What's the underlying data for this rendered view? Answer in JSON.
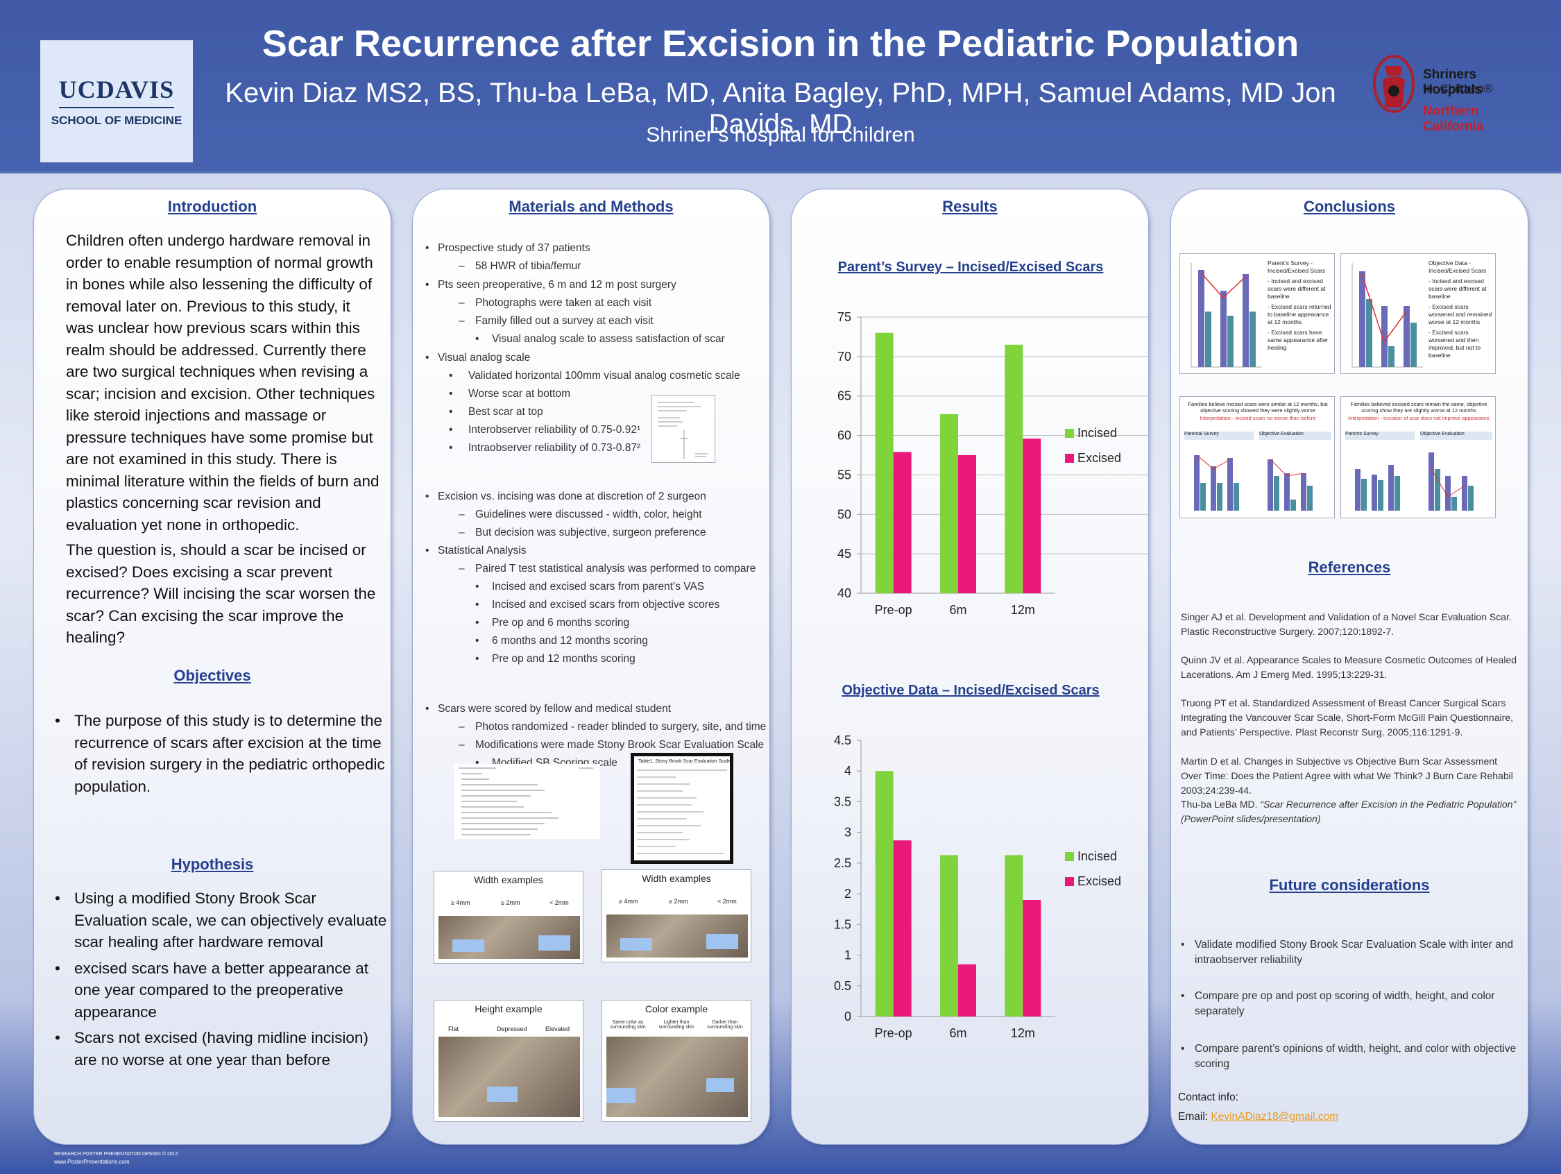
{
  "header": {
    "title": "Scar Recurrence after Excision in the Pediatric Population",
    "authors": "Kevin Diaz MS2, BS, Thu-ba LeBa, MD, Anita Bagley, PhD, MPH, Samuel Adams, MD Jon Davids, MD",
    "institution": "Shriner’s hospital for children",
    "logo_left": {
      "line1": "UCDAVIS",
      "line2": "SCHOOL OF MEDICINE"
    },
    "logo_right": {
      "line1": "Shriners Hospitals",
      "line2": "for Children®",
      "line3": "Northern California"
    }
  },
  "intro": {
    "heading": "Introduction",
    "para1": "Children often undergo hardware removal  in order to enable resumption of normal growth in bones while also lessening the difficulty of removal later on. Previous to this study, it was unclear how previous scars within this realm should be addressed. Currently there are two surgical techniques when revising a scar; incision and excision. Other techniques like steroid injections and massage or pressure techniques have some promise but are not examined in this study. There is minimal literature within the fields of burn and plastics concerning scar revision and evaluation yet none in orthopedic.",
    "para2": "The question is, should a scar be incised or excised? Does excising a scar prevent recurrence? Will incising the scar worsen the scar? Can excising the scar improve the healing?"
  },
  "objectives": {
    "heading": "Objectives",
    "items": [
      "The purpose of this study is to determine the recurrence of scars after excision at the time of revision surgery in the pediatric orthopedic population."
    ]
  },
  "hypothesis": {
    "heading": "Hypothesis",
    "items": [
      "Using a modified Stony Brook Scar Evaluation scale, we can objectively evaluate scar healing after hardware removal",
      "excised scars have a better appearance at one year compared to the preoperative appearance",
      "Scars not excised (having midline incision) are no worse at one year than before"
    ]
  },
  "methods": {
    "heading": "Materials and Methods",
    "lines": [
      {
        "level": 1,
        "marker": "•",
        "text": "Prospective study of 37 patients"
      },
      {
        "level": 2,
        "marker": "–",
        "text": "58 HWR of tibia/femur"
      },
      {
        "level": 1,
        "marker": "•",
        "text": "Pts seen preoperative, 6 m and 12 m post surgery"
      },
      {
        "level": 2,
        "marker": "–",
        "text": "Photographs were taken at each visit"
      },
      {
        "level": 2,
        "marker": "–",
        "text": "Family filled out a survey at each visit"
      },
      {
        "level": 3,
        "marker": "•",
        "text": "Visual analog scale to assess satisfaction of scar"
      },
      {
        "level": 1,
        "marker": "•",
        "text": "Visual analog scale"
      },
      {
        "level": 3,
        "marker": "•",
        "text": "Validated horizontal 100mm visual analog cosmetic scale"
      },
      {
        "level": 3,
        "marker": "•",
        "text": "Worse scar at bottom"
      },
      {
        "level": 3,
        "marker": "•",
        "text": "Best scar at top"
      },
      {
        "level": 3,
        "marker": "•",
        "text": "Interobserver reliability of 0.75-0.92¹"
      },
      {
        "level": 3,
        "marker": "•",
        "text": "Intraobserver reliability of 0.73-0.87²"
      },
      {
        "level": 1,
        "marker": "•",
        "text": "Excision vs. incising was done at discretion of 2 surgeon"
      },
      {
        "level": 2,
        "marker": "–",
        "text": "Guidelines were discussed - width, color, height"
      },
      {
        "level": 2,
        "marker": "–",
        "text": "But decision was subjective, surgeon preference"
      },
      {
        "level": 1,
        "marker": "•",
        "text": "Statistical Analysis"
      },
      {
        "level": 2,
        "marker": "–",
        "text": "Paired T test statistical analysis was performed to compare"
      },
      {
        "level": 3,
        "marker": "•",
        "text": "Incised and excised scars from parent’s VAS"
      },
      {
        "level": 3,
        "marker": "•",
        "text": "Incised and excised scars from objective scores"
      },
      {
        "level": 3,
        "marker": "•",
        "text": "Pre op and 6 months scoring"
      },
      {
        "level": 3,
        "marker": "•",
        "text": "6 months and 12 months scoring"
      },
      {
        "level": 3,
        "marker": "•",
        "text": "Pre op and 12 months scoring"
      },
      {
        "level": 1,
        "marker": "•",
        "text": "Scars were scored by fellow and medical student"
      },
      {
        "level": 2,
        "marker": "–",
        "text": "Photos randomized - reader blinded to surgery, site, and time"
      },
      {
        "level": 2,
        "marker": "–",
        "text": "Modifications were made Stony Brook Scar Evaluation Scale"
      },
      {
        "level": 3,
        "marker": "•",
        "text": "Modified SB Scoring scale"
      }
    ],
    "figures": {
      "width1": "Width examples",
      "width2": "Width examples",
      "height": "Height example",
      "color": "Color example",
      "width_labels": [
        "≥ 4mm",
        "≥ 2mm",
        "< 2mm"
      ],
      "height_labels": [
        "Flat",
        "Depressed",
        "Elevated"
      ],
      "color_labels": [
        "Same color as surrounding skin",
        "Lighter than surrounding skin",
        "Darker than surrounding skin"
      ],
      "table_title": "Table1. Stony Brook Scar Evaluation Scale"
    }
  },
  "results": {
    "heading": "Results"
  },
  "chart_data": [
    {
      "type": "bar",
      "title": "Parent’s Survey – Incised/Excised Scars",
      "categories": [
        "Pre-op",
        "6m",
        "12m"
      ],
      "series": [
        {
          "name": "Incised",
          "values": [
            73.0,
            62.7,
            71.5
          ],
          "color": "#7ed43a"
        },
        {
          "name": "Excised",
          "values": [
            57.9,
            57.5,
            59.6
          ],
          "color": "#e8197a"
        }
      ],
      "ylim": [
        40,
        75
      ],
      "yticks": [
        "75",
        "70",
        "65",
        "60",
        "55",
        "50",
        "45",
        "40"
      ],
      "grid": true,
      "legend": "right"
    },
    {
      "type": "bar",
      "title": "Objective Data – Incised/Excised Scars",
      "categories": [
        "Pre-op",
        "6m",
        "12m"
      ],
      "series": [
        {
          "name": "Incised",
          "values": [
            4.0,
            2.63,
            2.63
          ],
          "color": "#7ed43a"
        },
        {
          "name": "Excised",
          "values": [
            2.87,
            0.85,
            1.9
          ],
          "color": "#e8197a"
        }
      ],
      "ylim": [
        0,
        4.5
      ],
      "yticks": [
        "4.5",
        "4",
        "3.5",
        "3",
        "2.5",
        "2",
        "1.5",
        "1",
        "0.5",
        "0"
      ],
      "grid": false,
      "legend": "right"
    }
  ],
  "conclusions": {
    "heading": "Conclusions",
    "thumb1": [
      "Parent’s Survey - Incised/Excised Scars",
      "- Incised and excised scars were different at baseline",
      "- Excised scars returned to baseline appearance at 12 months",
      "- Excised scars have same appearance after healing"
    ],
    "thumb2": [
      "Objective Data - Incised/Excised Scars",
      "- Incised and excised scars were different at baseline",
      "- Excised scars worsened and remained worse at 12 months",
      "- Excised scars worsened and then improved, but not to baseline"
    ],
    "thumb3": [
      "Families believe incised scars were similar at 12 months, but objective scoring showed they were slightly worse",
      "Interpretation - incised scars no worse than before",
      "Parental Survey",
      "Objective Evaluation"
    ],
    "thumb4": [
      "Families believed excised scars remain the same, objective scoring show they are slightly worse at 12 months",
      "Interpretation - excision of scar does not improve appearance",
      "Parents Survey",
      "Objective Evaluation"
    ]
  },
  "references": {
    "heading": "References",
    "items": [
      "Singer AJ et al. Development and Validation of a Novel Scar Evaluation Scar. Plastic Reconstructive Surgery. 2007;120:1892-7.",
      "Quinn JV et al. Appearance Scales to Measure Cosmetic Outcomes of Healed Lacerations. Am J Emerg Med. 1995;13:229-31.",
      "Truong PT et al. Standardized Assessment of Breast Cancer Surgical Scars Integrating the Vancouver Scar Scale, Short-Form McGill Pain Questionnaire, and Patients’ Perspective. Plast Reconstr Surg. 2005;116:1291-9.",
      "Martin D et al. Changes in Subjective vs Objective Burn Scar Assessment Over Time: Does the Patient Agree with what We Think? J Burn Care Rehabil 2003;24:239-44."
    ],
    "last_author": "Thu-ba LeBa MD. ",
    "last_title": "“Scar Recurrence after Excision in the Pediatric Population” (PowerPoint slides/presentation)"
  },
  "future": {
    "heading": "Future considerations",
    "items": [
      "Validate modified Stony Brook Scar Evaluation Scale with inter and intraobserver reliability",
      "Compare pre op and post op scoring of width, height, and color separately",
      "Compare parent’s opinions of width, height, and color with objective scoring"
    ],
    "contact_label": "Contact info:",
    "email_label": "Email: ",
    "email": "KevinADiaz18@gmail.com"
  },
  "footer": {
    "line1": "RESEARCH POSTER PRESENTATION DESIGN © 2012",
    "line2": "www.PosterPresentations.com"
  }
}
